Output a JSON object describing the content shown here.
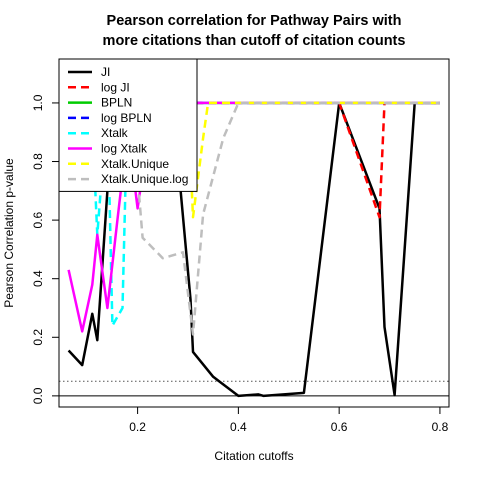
{
  "chart_data": {
    "type": "line",
    "title": [
      "Pearson correlation for Pathway Pairs with",
      "more citations than cutoff of citation counts"
    ],
    "xlabel": "Citation cutoffs",
    "ylabel": "Pearson Correlation p-value",
    "xlim": [
      0.044,
      0.818
    ],
    "ylim": [
      -0.038,
      1.15
    ],
    "xticks": [
      0.2,
      0.4,
      0.6,
      0.8
    ],
    "xtick_labels": [
      "0.2",
      "0.4",
      "0.6",
      "0.8"
    ],
    "yticks": [
      0.0,
      0.2,
      0.4,
      0.6,
      0.8,
      1.0
    ],
    "ytick_labels": [
      "0.0",
      "0.2",
      "0.4",
      "0.6",
      "0.8",
      "1.0"
    ],
    "reference_lines": [
      {
        "y": 0.0,
        "style": "solid",
        "color": "#000000"
      },
      {
        "y": 0.05,
        "style": "dotted",
        "color": "#555555"
      }
    ],
    "legend_position": "top-left",
    "series": [
      {
        "name": "JI",
        "color": "#000000",
        "dash": "solid",
        "x": [
          0.063,
          0.09,
          0.11,
          0.12,
          0.14,
          0.16,
          0.27,
          0.305,
          0.31,
          0.35,
          0.4,
          0.44,
          0.45,
          0.53,
          0.6,
          0.68,
          0.69,
          0.71,
          0.75,
          0.8
        ],
        "y": [
          0.155,
          0.105,
          0.28,
          0.19,
          0.7,
          0.99,
          0.99,
          0.33,
          0.15,
          0.065,
          0.0,
          0.005,
          0.0,
          0.01,
          1.0,
          0.64,
          0.235,
          0.003,
          1.0,
          1.0
        ]
      },
      {
        "name": "log JI",
        "color": "#ff0000",
        "dash": "dashed",
        "x": [
          0.16,
          0.59,
          0.6,
          0.68,
          0.69,
          0.7,
          0.8
        ],
        "y": [
          1.0,
          1.0,
          1.0,
          0.61,
          1.0,
          1.0,
          1.0
        ]
      },
      {
        "name": "BPLN",
        "color": "#00cc00",
        "dash": "solid",
        "x": [
          0.16,
          0.8
        ],
        "y": [
          1.0,
          1.0
        ]
      },
      {
        "name": "log BPLN",
        "color": "#0000ff",
        "dash": "dashed",
        "x": [
          0.16,
          0.8
        ],
        "y": [
          1.0,
          1.0
        ]
      },
      {
        "name": "Xtalk",
        "color": "#00ffff",
        "dash": "dashed",
        "x": [
          0.11,
          0.12,
          0.14,
          0.15,
          0.17,
          0.18,
          0.31,
          0.8
        ],
        "y": [
          0.93,
          0.55,
          1.0,
          0.24,
          0.3,
          1.0,
          1.0,
          1.0
        ]
      },
      {
        "name": "log Xtalk",
        "color": "#ff00ff",
        "dash": "solid",
        "x": [
          0.063,
          0.09,
          0.11,
          0.12,
          0.14,
          0.16,
          0.17,
          0.185,
          0.2,
          0.23,
          0.8
        ],
        "y": [
          0.43,
          0.22,
          0.38,
          0.55,
          0.3,
          0.6,
          0.75,
          0.85,
          0.64,
          1.0,
          1.0
        ]
      },
      {
        "name": "Xtalk.Unique",
        "color": "#ffff00",
        "dash": "dashed",
        "x": [
          0.19,
          0.3,
          0.31,
          0.33,
          0.34,
          0.8
        ],
        "y": [
          1.0,
          1.0,
          0.61,
          0.88,
          1.0,
          1.0
        ]
      },
      {
        "name": "Xtalk.Unique.log",
        "color": "#bebebe",
        "dash": "dashed",
        "x": [
          0.17,
          0.195,
          0.21,
          0.25,
          0.29,
          0.31,
          0.33,
          0.37,
          0.4,
          0.8
        ],
        "y": [
          0.89,
          0.85,
          0.54,
          0.47,
          0.49,
          0.21,
          0.62,
          0.88,
          1.0,
          1.0
        ]
      }
    ]
  }
}
